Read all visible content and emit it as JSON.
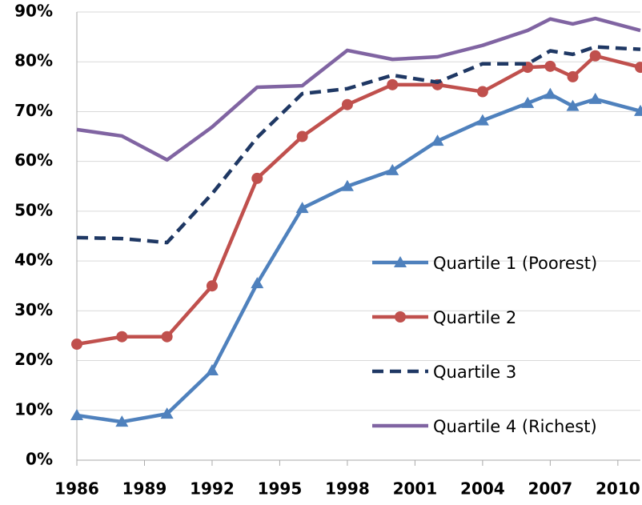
{
  "chart_data": {
    "type": "line",
    "x": [
      1986,
      1988,
      1990,
      1992,
      1994,
      1996,
      1998,
      2000,
      2002,
      2004,
      2006,
      2007,
      2008,
      2009,
      2011
    ],
    "series": [
      {
        "name": "Quartile 1 (Poorest)",
        "color": "#4f81bd",
        "marker": "triangle",
        "dash": false,
        "values": [
          9.0,
          7.7,
          9.3,
          18.0,
          35.5,
          50.6,
          55.0,
          58.2,
          64.1,
          68.2,
          71.7,
          73.5,
          71.1,
          72.5,
          70.1
        ]
      },
      {
        "name": "Quartile 2",
        "color": "#c0504d",
        "marker": "circle",
        "dash": false,
        "values": [
          23.3,
          24.8,
          24.8,
          35.0,
          56.6,
          65.0,
          71.4,
          75.4,
          75.4,
          74.0,
          78.9,
          79.1,
          77.0,
          81.2,
          78.9
        ]
      },
      {
        "name": "Quartile 3",
        "color": "#1f3864",
        "marker": "none",
        "dash": true,
        "values": [
          44.7,
          44.5,
          43.7,
          53.5,
          64.8,
          73.6,
          74.6,
          77.3,
          75.9,
          79.6,
          79.6,
          82.2,
          81.5,
          83.0,
          82.5
        ]
      },
      {
        "name": "Quartile 4 (Richest)",
        "color": "#8064a2",
        "marker": "none",
        "dash": false,
        "values": [
          66.4,
          65.1,
          60.3,
          66.9,
          74.9,
          75.2,
          82.3,
          80.5,
          81.0,
          83.3,
          86.3,
          88.6,
          87.6,
          88.7,
          86.3
        ]
      }
    ],
    "xlim": [
      1986,
      2011
    ],
    "xticks": [
      1986,
      1989,
      1992,
      1995,
      1998,
      2001,
      2004,
      2007,
      2010
    ],
    "ylim": [
      0,
      90
    ],
    "yticks": [
      {
        "value": 0,
        "label": "0%"
      },
      {
        "value": 10,
        "label": "10%"
      },
      {
        "value": 20,
        "label": "20%"
      },
      {
        "value": 30,
        "label": "30%"
      },
      {
        "value": 40,
        "label": "40%"
      },
      {
        "value": 50,
        "label": "50%"
      },
      {
        "value": 60,
        "label": "60%"
      },
      {
        "value": 70,
        "label": "70%"
      },
      {
        "value": 80,
        "label": "80%"
      },
      {
        "value": 90,
        "label": "90%"
      }
    ],
    "grid": true,
    "legend": "lower-right"
  }
}
